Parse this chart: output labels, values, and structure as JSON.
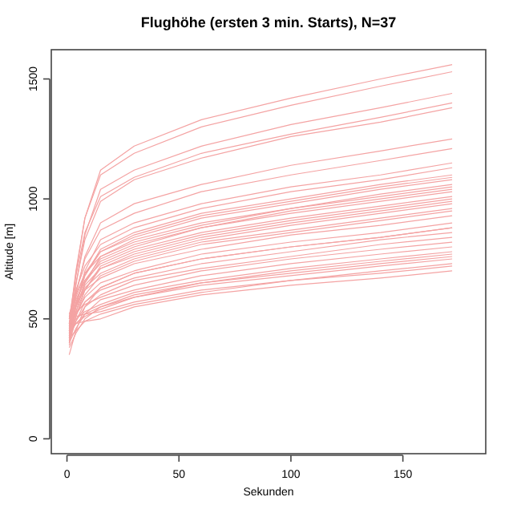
{
  "chart_data": {
    "type": "line",
    "title": "Flughöhe (ersten 3 min. Starts), N=37",
    "xlabel": "Sekunden",
    "ylabel": "Altitude [m]",
    "x": [
      1,
      4,
      8,
      15,
      30,
      60,
      100,
      140,
      172
    ],
    "color": "#f4a3a3",
    "xlim": [
      -7,
      187
    ],
    "ylim": [
      -62,
      1622
    ],
    "xticks": [
      0,
      50,
      100,
      150
    ],
    "yticks": [
      0,
      500,
      1000,
      1500
    ],
    "grid": false,
    "line_style": "solid",
    "marker": "none",
    "series": [
      {
        "values": [
          450,
          690,
          920,
          1120,
          1220,
          1330,
          1420,
          1500,
          1560
        ]
      },
      {
        "values": [
          480,
          700,
          920,
          1100,
          1190,
          1300,
          1390,
          1470,
          1530
        ]
      },
      {
        "values": [
          420,
          640,
          850,
          1040,
          1120,
          1220,
          1310,
          1380,
          1440
        ]
      },
      {
        "values": [
          500,
          680,
          860,
          1010,
          1090,
          1190,
          1270,
          1340,
          1400
        ]
      },
      {
        "values": [
          460,
          650,
          830,
          990,
          1080,
          1170,
          1260,
          1320,
          1380
        ]
      },
      {
        "values": [
          440,
          600,
          760,
          900,
          980,
          1060,
          1140,
          1200,
          1250
        ]
      },
      {
        "values": [
          470,
          610,
          750,
          870,
          940,
          1030,
          1100,
          1160,
          1210
        ]
      },
      {
        "values": [
          400,
          550,
          700,
          830,
          900,
          980,
          1050,
          1100,
          1150
        ]
      },
      {
        "values": [
          510,
          620,
          720,
          810,
          880,
          960,
          1030,
          1080,
          1130
        ]
      },
      {
        "values": [
          430,
          560,
          680,
          790,
          860,
          940,
          1000,
          1060,
          1100
        ]
      },
      {
        "values": [
          480,
          590,
          690,
          780,
          850,
          930,
          990,
          1050,
          1090
        ]
      },
      {
        "values": [
          450,
          560,
          680,
          780,
          840,
          920,
          980,
          1040,
          1080
        ]
      },
      {
        "values": [
          520,
          600,
          690,
          760,
          830,
          900,
          960,
          1020,
          1060
        ]
      },
      {
        "values": [
          410,
          530,
          650,
          760,
          820,
          890,
          960,
          1010,
          1050
        ]
      },
      {
        "values": [
          470,
          570,
          660,
          750,
          810,
          880,
          950,
          1000,
          1040
        ]
      },
      {
        "values": [
          440,
          550,
          650,
          740,
          800,
          880,
          940,
          990,
          1030
        ]
      },
      {
        "values": [
          500,
          580,
          660,
          730,
          790,
          860,
          920,
          970,
          1010
        ]
      },
      {
        "values": [
          390,
          510,
          620,
          720,
          780,
          850,
          910,
          960,
          1000
        ]
      },
      {
        "values": [
          460,
          550,
          640,
          710,
          770,
          840,
          900,
          950,
          990
        ]
      },
      {
        "values": [
          430,
          530,
          620,
          710,
          760,
          830,
          890,
          940,
          980
        ]
      },
      {
        "values": [
          480,
          550,
          630,
          690,
          750,
          820,
          870,
          920,
          960
        ]
      },
      {
        "values": [
          420,
          510,
          600,
          680,
          740,
          810,
          860,
          910,
          950
        ]
      },
      {
        "values": [
          500,
          560,
          620,
          670,
          730,
          790,
          850,
          890,
          930
        ]
      },
      {
        "values": [
          450,
          520,
          590,
          650,
          700,
          770,
          820,
          860,
          900
        ]
      },
      {
        "values": [
          410,
          490,
          570,
          630,
          690,
          750,
          800,
          840,
          880
        ]
      },
      {
        "values": [
          470,
          520,
          570,
          620,
          670,
          730,
          780,
          830,
          860
        ]
      },
      {
        "values": [
          430,
          490,
          550,
          600,
          660,
          710,
          760,
          810,
          840
        ]
      },
      {
        "values": [
          490,
          530,
          560,
          590,
          640,
          700,
          750,
          790,
          820
        ]
      },
      {
        "values": [
          400,
          460,
          520,
          580,
          620,
          680,
          730,
          770,
          800
        ]
      },
      {
        "values": [
          460,
          500,
          530,
          560,
          610,
          660,
          710,
          750,
          780
        ]
      },
      {
        "values": [
          440,
          480,
          520,
          550,
          600,
          650,
          700,
          740,
          770
        ]
      },
      {
        "values": [
          380,
          440,
          500,
          550,
          590,
          650,
          690,
          730,
          760
        ]
      },
      {
        "values": [
          450,
          480,
          510,
          540,
          590,
          640,
          680,
          720,
          750
        ]
      },
      {
        "values": [
          500,
          510,
          520,
          530,
          570,
          620,
          660,
          700,
          730
        ]
      },
      {
        "values": [
          420,
          450,
          490,
          520,
          560,
          610,
          660,
          690,
          720
        ]
      },
      {
        "values": [
          470,
          480,
          490,
          500,
          550,
          600,
          640,
          670,
          700
        ]
      },
      {
        "values": [
          350,
          450,
          550,
          630,
          690,
          750,
          800,
          840,
          880
        ]
      }
    ]
  }
}
